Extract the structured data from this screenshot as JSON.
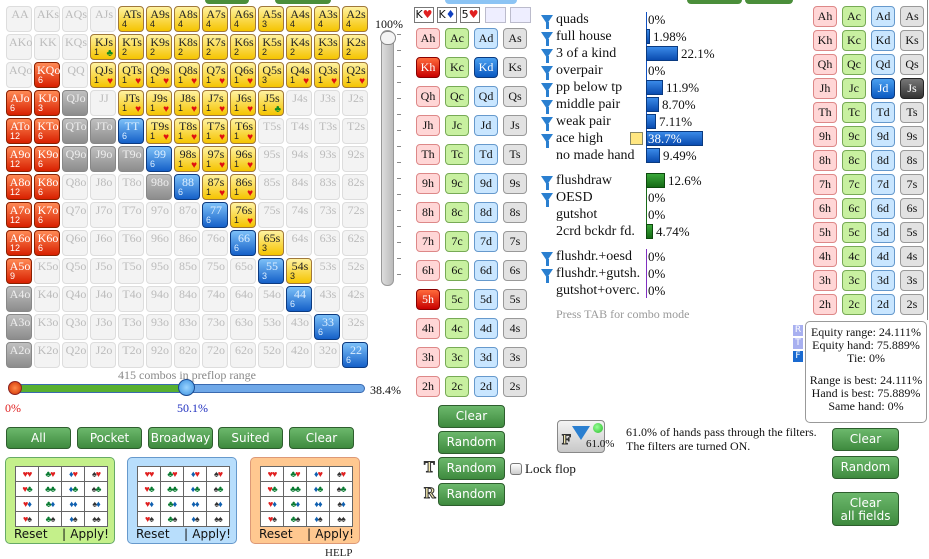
{
  "ranks": [
    "A",
    "K",
    "Q",
    "J",
    "T",
    "9",
    "8",
    "7",
    "6",
    "5",
    "4",
    "3",
    "2"
  ],
  "grid": [
    [
      [
        "AA",
        "e"
      ],
      [
        "AKs",
        "e"
      ],
      [
        "AQs",
        "e"
      ],
      [
        "AJs",
        "e"
      ],
      [
        "ATs",
        "y",
        "4"
      ],
      [
        "A9s",
        "y",
        "4"
      ],
      [
        "A8s",
        "y",
        "4"
      ],
      [
        "A7s",
        "y",
        "4"
      ],
      [
        "A6s",
        "y",
        "4"
      ],
      [
        "A5s",
        "y",
        "3"
      ],
      [
        "A4s",
        "y",
        "4"
      ],
      [
        "A3s",
        "y",
        "4"
      ],
      [
        "A2s",
        "y",
        "4"
      ]
    ],
    [
      [
        "AKo",
        "e"
      ],
      [
        "KK",
        "e"
      ],
      [
        "KQs",
        "e"
      ],
      [
        "KJs",
        "y",
        "1",
        "♣"
      ],
      [
        "KTs",
        "y",
        "2"
      ],
      [
        "K9s",
        "y",
        "2"
      ],
      [
        "K8s",
        "y",
        "2"
      ],
      [
        "K7s",
        "y",
        "2"
      ],
      [
        "K6s",
        "y",
        "2"
      ],
      [
        "K5s",
        "y",
        "2"
      ],
      [
        "K4s",
        "y",
        "2"
      ],
      [
        "K3s",
        "y",
        "2"
      ],
      [
        "K2s",
        "y",
        "2"
      ]
    ],
    [
      [
        "AQo",
        "e"
      ],
      [
        "KQo",
        "r",
        "6"
      ],
      [
        "QQ",
        "e"
      ],
      [
        "QJs",
        "y",
        "1",
        "♥"
      ],
      [
        "QTs",
        "y",
        "1",
        "♥"
      ],
      [
        "Q9s",
        "y",
        "1",
        "♥"
      ],
      [
        "Q8s",
        "y",
        "1",
        "♥"
      ],
      [
        "Q7s",
        "y",
        "1",
        "♥"
      ],
      [
        "Q6s",
        "y",
        "1",
        "♥"
      ],
      [
        "Q5s",
        "y",
        "3"
      ],
      [
        "Q4s",
        "y",
        "1",
        "♥"
      ],
      [
        "Q3s",
        "y",
        "1",
        "♥"
      ],
      [
        "Q2s",
        "y",
        "1",
        "♥"
      ]
    ],
    [
      [
        "AJo",
        "r",
        "6"
      ],
      [
        "KJo",
        "r",
        "3"
      ],
      [
        "QJo",
        "g"
      ],
      [
        "JJ",
        "e"
      ],
      [
        "JTs",
        "y",
        "1",
        "♥"
      ],
      [
        "J9s",
        "y",
        "1",
        "♥"
      ],
      [
        "J8s",
        "y",
        "1",
        "♥"
      ],
      [
        "J7s",
        "y",
        "1",
        "♥"
      ],
      [
        "J6s",
        "y",
        "1",
        "♥"
      ],
      [
        "J5s",
        "y",
        "1",
        "♣"
      ],
      [
        "J4s",
        "e"
      ],
      [
        "J3s",
        "e"
      ],
      [
        "J2s",
        "e"
      ]
    ],
    [
      [
        "ATo",
        "r",
        "12"
      ],
      [
        "KTo",
        "r",
        "6"
      ],
      [
        "QTo",
        "g"
      ],
      [
        "JTo",
        "g"
      ],
      [
        "TT",
        "b",
        "6"
      ],
      [
        "T9s",
        "y",
        "1",
        "♥"
      ],
      [
        "T8s",
        "y",
        "1",
        "♥"
      ],
      [
        "T7s",
        "y",
        "1",
        "♥"
      ],
      [
        "T6s",
        "y",
        "1",
        "♥"
      ],
      [
        "T5s",
        "e"
      ],
      [
        "T4s",
        "e"
      ],
      [
        "T3s",
        "e"
      ],
      [
        "T2s",
        "e"
      ]
    ],
    [
      [
        "A9o",
        "r",
        "12"
      ],
      [
        "K9o",
        "r",
        "6"
      ],
      [
        "Q9o",
        "g"
      ],
      [
        "J9o",
        "g"
      ],
      [
        "T9o",
        "g"
      ],
      [
        "99",
        "b",
        "6"
      ],
      [
        "98s",
        "y",
        "1",
        "♥"
      ],
      [
        "97s",
        "y",
        "1",
        "♥"
      ],
      [
        "96s",
        "y",
        "1",
        "♥"
      ],
      [
        "95s",
        "e"
      ],
      [
        "94s",
        "e"
      ],
      [
        "93s",
        "e"
      ],
      [
        "92s",
        "e"
      ]
    ],
    [
      [
        "A8o",
        "r",
        "12"
      ],
      [
        "K8o",
        "r",
        "6"
      ],
      [
        "Q8o",
        "e"
      ],
      [
        "J8o",
        "e"
      ],
      [
        "T8o",
        "e"
      ],
      [
        "98o",
        "g"
      ],
      [
        "88",
        "b",
        "6"
      ],
      [
        "87s",
        "y",
        "1",
        "♥"
      ],
      [
        "86s",
        "y",
        "1",
        "♥"
      ],
      [
        "85s",
        "e"
      ],
      [
        "84s",
        "e"
      ],
      [
        "83s",
        "e"
      ],
      [
        "82s",
        "e"
      ]
    ],
    [
      [
        "A7o",
        "r",
        "12"
      ],
      [
        "K7o",
        "r",
        "6"
      ],
      [
        "Q7o",
        "e"
      ],
      [
        "J7o",
        "e"
      ],
      [
        "T7o",
        "e"
      ],
      [
        "97o",
        "e"
      ],
      [
        "87o",
        "e"
      ],
      [
        "77",
        "b",
        "6"
      ],
      [
        "76s",
        "y",
        "1",
        "♥"
      ],
      [
        "75s",
        "e"
      ],
      [
        "74s",
        "e"
      ],
      [
        "73s",
        "e"
      ],
      [
        "72s",
        "e"
      ]
    ],
    [
      [
        "A6o",
        "r",
        "12"
      ],
      [
        "K6o",
        "r",
        "6"
      ],
      [
        "Q6o",
        "e"
      ],
      [
        "J6o",
        "e"
      ],
      [
        "T6o",
        "e"
      ],
      [
        "96o",
        "e"
      ],
      [
        "86o",
        "e"
      ],
      [
        "76o",
        "e"
      ],
      [
        "66",
        "b",
        "6"
      ],
      [
        "65s",
        "y",
        "3"
      ],
      [
        "64s",
        "e"
      ],
      [
        "63s",
        "e"
      ],
      [
        "62s",
        "e"
      ]
    ],
    [
      [
        "A5o",
        "r",
        "9"
      ],
      [
        "K5o",
        "e"
      ],
      [
        "Q5o",
        "e"
      ],
      [
        "J5o",
        "e"
      ],
      [
        "T5o",
        "e"
      ],
      [
        "95o",
        "e"
      ],
      [
        "85o",
        "e"
      ],
      [
        "75o",
        "e"
      ],
      [
        "65o",
        "e"
      ],
      [
        "55",
        "b",
        "3"
      ],
      [
        "54s",
        "y",
        "3"
      ],
      [
        "53s",
        "e"
      ],
      [
        "52s",
        "e"
      ]
    ],
    [
      [
        "A4o",
        "g"
      ],
      [
        "K4o",
        "e"
      ],
      [
        "Q4o",
        "e"
      ],
      [
        "J4o",
        "e"
      ],
      [
        "T4o",
        "e"
      ],
      [
        "94o",
        "e"
      ],
      [
        "84o",
        "e"
      ],
      [
        "74o",
        "e"
      ],
      [
        "64o",
        "e"
      ],
      [
        "54o",
        "e"
      ],
      [
        "44",
        "b",
        "6"
      ],
      [
        "43s",
        "e"
      ],
      [
        "42s",
        "e"
      ]
    ],
    [
      [
        "A3o",
        "g"
      ],
      [
        "K3o",
        "e"
      ],
      [
        "Q3o",
        "e"
      ],
      [
        "J3o",
        "e"
      ],
      [
        "T3o",
        "e"
      ],
      [
        "93o",
        "e"
      ],
      [
        "83o",
        "e"
      ],
      [
        "73o",
        "e"
      ],
      [
        "63o",
        "e"
      ],
      [
        "53o",
        "e"
      ],
      [
        "43o",
        "e"
      ],
      [
        "33",
        "b",
        "6"
      ],
      [
        "32s",
        "e"
      ]
    ],
    [
      [
        "A2o",
        "g"
      ],
      [
        "K2o",
        "e"
      ],
      [
        "Q2o",
        "e"
      ],
      [
        "J2o",
        "e"
      ],
      [
        "T2o",
        "e"
      ],
      [
        "92o",
        "e"
      ],
      [
        "82o",
        "e"
      ],
      [
        "72o",
        "e"
      ],
      [
        "62o",
        "e"
      ],
      [
        "52o",
        "e"
      ],
      [
        "42o",
        "e"
      ],
      [
        "32o",
        "e"
      ],
      [
        "22",
        "b",
        "6"
      ]
    ]
  ],
  "range": {
    "vertical_slider_label": "100%",
    "vertical_slider_value": 100,
    "combos_text": "415 combos in preflop range",
    "min_label": "0%",
    "mid_label": "50.1%",
    "max_label": "38.4%"
  },
  "range_buttons": [
    "All",
    "Pocket",
    "Broadway",
    "Suited",
    "Clear"
  ],
  "suit_panels": {
    "suits": [
      "♥",
      "♣",
      "♦",
      "♠"
    ],
    "suit_colors": {
      "♥": "#e02020",
      "♣": "#087a30",
      "♦": "#1060b0",
      "♠": "#333333"
    },
    "reset": "Reset",
    "sep": "|",
    "apply": "Apply!",
    "colors": [
      "#c4f08a",
      "#b8defc",
      "#ffc890"
    ]
  },
  "help": "HELP",
  "flop": {
    "cards": [
      {
        "label": "K",
        "suit": "♥",
        "color": "#e02020"
      },
      {
        "label": "K",
        "suit": "♦",
        "color": "#1040c0"
      },
      {
        "label": "5",
        "suit": "♥",
        "color": "#e02020"
      }
    ],
    "empty_slots": 2
  },
  "board_picker": {
    "selected": {
      "Kh": "selr",
      "Kd": "selb",
      "5h": "selr"
    }
  },
  "hand_picker": {
    "selected": {
      "Jd": "selb",
      "Js": "seldk"
    }
  },
  "suit_order": [
    "h",
    "c",
    "d",
    "s"
  ],
  "mid_buttons": {
    "clear": "Clear",
    "random": "Random",
    "turn_label": "T",
    "turn_random": "Random",
    "river_label": "R",
    "river_random": "Random",
    "lock_flop": "Lock flop"
  },
  "stats": {
    "made": [
      {
        "label": "quads",
        "value": "0%",
        "pct": 0,
        "filter": true
      },
      {
        "label": "full house",
        "value": "1.98%",
        "pct": 1.98,
        "filter": true
      },
      {
        "label": "3 of a kind",
        "value": "22.1%",
        "pct": 22.1,
        "filter": true
      },
      {
        "label": "overpair",
        "value": "0%",
        "pct": 0,
        "filter": true
      },
      {
        "label": "pp below tp",
        "value": "11.9%",
        "pct": 11.9,
        "filter": true
      },
      {
        "label": "middle pair",
        "value": "8.70%",
        "pct": 8.7,
        "filter": true
      },
      {
        "label": "weak pair",
        "value": "7.11%",
        "pct": 7.11,
        "filter": true
      },
      {
        "label": "ace high",
        "value": "38.7%",
        "pct": 38.7,
        "filter": true,
        "active": true
      },
      {
        "label": "no made hand",
        "value": "9.49%",
        "pct": 9.49,
        "filter": false
      }
    ],
    "draws": [
      {
        "label": "flushdraw",
        "value": "12.6%",
        "pct": 12.6,
        "filter": true
      },
      {
        "label": "OESD",
        "value": "0%",
        "pct": 0,
        "filter": true
      },
      {
        "label": "gutshot",
        "value": "0%",
        "pct": 0,
        "filter": false
      },
      {
        "label": "2crd bckdr fd.",
        "value": "4.74%",
        "pct": 4.74,
        "filter": false
      }
    ],
    "combos": [
      {
        "label": "flushdr.+oesd",
        "value": "0%",
        "pct": 0,
        "filter": true
      },
      {
        "label": "flushdr.+gutsh.",
        "value": "0%",
        "pct": 0,
        "filter": true
      },
      {
        "label": "gutshot+overc.",
        "value": "0%",
        "pct": 0,
        "filter": false
      }
    ],
    "hint": "Press TAB for combo mode"
  },
  "filter": {
    "icon_letter": "F",
    "value": "61.0%",
    "line1": "61.0% of hands pass through the filters.",
    "line2": "The filters are turned ON.",
    "status_color": "#22bb22"
  },
  "equity": {
    "tabs": [
      "R",
      "T",
      "F"
    ],
    "lines1": [
      "Equity range: 24.111%",
      "Equity hand: 75.889%",
      "Tie: 0%"
    ],
    "lines2": [
      "Range is best: 24.111%",
      "Hand is best: 75.889%",
      "Same hand: 0%"
    ]
  },
  "right_buttons": {
    "clear": "Clear",
    "random": "Random",
    "clear_all_1": "Clear",
    "clear_all_2": "all fields"
  }
}
